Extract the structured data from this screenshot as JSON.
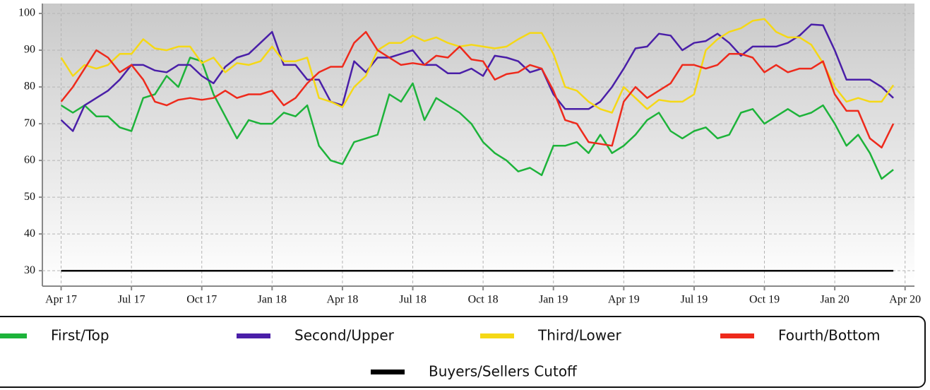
{
  "chart_data": {
    "type": "line",
    "x": [
      0,
      0.5,
      1,
      1.5,
      2,
      2.5,
      3,
      3.5,
      4,
      4.5,
      5,
      5.5,
      6,
      6.5,
      7,
      7.5,
      8,
      8.5,
      9,
      9.5,
      10,
      10.5,
      11,
      11.5,
      12,
      12.5,
      13,
      13.5,
      14,
      14.5,
      15,
      15.5,
      16,
      16.5,
      17,
      17.5,
      18,
      18.5,
      19,
      19.5,
      20,
      20.5,
      21,
      21.5,
      22,
      22.5,
      23,
      23.5,
      24,
      24.5,
      25,
      25.5,
      26,
      26.5,
      27,
      27.5,
      28,
      28.5,
      29,
      29.5,
      30,
      30.5,
      31,
      31.5,
      32,
      32.5,
      33,
      33.5,
      34,
      34.5,
      35,
      35.5
    ],
    "xlim": [
      -0.8,
      36.4
    ],
    "xticks": [
      {
        "value": 0,
        "label": "Apr 17"
      },
      {
        "value": 3,
        "label": "Jul 17"
      },
      {
        "value": 6,
        "label": "Oct 17"
      },
      {
        "value": 9,
        "label": "Jan 18"
      },
      {
        "value": 12,
        "label": "Apr 18"
      },
      {
        "value": 15,
        "label": "Jul 18"
      },
      {
        "value": 18,
        "label": "Oct 18"
      },
      {
        "value": 21,
        "label": "Jan 19"
      },
      {
        "value": 24,
        "label": "Apr 19"
      },
      {
        "value": 27,
        "label": "Jul 19"
      },
      {
        "value": 30,
        "label": "Oct 19"
      },
      {
        "value": 33,
        "label": "Jan 20"
      },
      {
        "value": 36,
        "label": "Apr 20"
      }
    ],
    "ylim": [
      25.8,
      102.7
    ],
    "yticks": [
      30,
      40,
      50,
      60,
      70,
      80,
      90,
      100
    ],
    "grid": true,
    "legend": "bottom",
    "series": [
      {
        "name": "First/Top",
        "color": "#1db33a",
        "values": [
          75,
          73,
          75,
          72,
          72,
          69,
          68,
          77,
          78,
          83,
          80,
          88,
          87,
          78,
          72,
          66,
          71,
          70,
          70,
          73,
          72,
          75,
          64,
          60,
          59,
          65,
          66,
          67,
          78,
          76,
          81,
          71,
          77,
          75,
          73,
          70,
          65,
          62,
          60,
          57,
          58,
          56,
          64,
          64,
          65,
          62,
          67,
          62,
          64,
          67,
          71,
          73,
          68,
          66,
          68,
          69,
          66,
          67,
          73,
          74,
          70,
          72,
          74,
          72,
          73,
          75,
          70,
          64,
          67,
          62,
          55,
          57.5
        ]
      },
      {
        "name": "Second/Upper",
        "color": "#4a1fa8",
        "values": [
          71,
          68,
          75,
          77,
          79,
          82,
          86,
          86,
          84.5,
          84,
          86,
          86,
          83,
          81,
          85.5,
          88,
          89,
          92,
          95,
          86,
          86,
          82,
          82,
          76,
          75,
          87,
          84,
          88,
          88,
          89,
          90,
          86,
          86,
          83.7,
          83.7,
          85,
          83,
          88.5,
          88,
          87,
          84,
          85,
          78,
          74,
          74,
          74,
          76,
          80,
          85,
          90.5,
          91,
          94.5,
          94,
          90,
          92,
          92.5,
          94.5,
          92,
          88.5,
          91,
          91,
          91,
          92,
          94,
          97,
          96.8,
          90,
          82,
          82,
          82,
          80,
          77
        ]
      },
      {
        "name": "Third/Lower",
        "color": "#f5d816",
        "values": [
          88,
          83,
          86,
          85,
          86,
          89,
          89,
          93,
          90.5,
          90,
          91,
          91,
          86.5,
          88,
          84,
          86.5,
          86,
          87,
          91,
          87,
          87,
          88,
          77,
          76,
          74.5,
          80,
          83,
          90,
          92,
          92,
          94,
          92.5,
          93.5,
          92,
          91,
          91.5,
          91,
          90.5,
          91,
          93,
          94.7,
          94.7,
          89,
          80,
          79,
          76,
          74,
          73,
          80,
          77,
          74,
          76.5,
          76,
          76,
          78,
          90,
          93,
          95,
          96,
          98,
          98.5,
          95,
          93.5,
          93.5,
          91.5,
          86.5,
          80,
          76,
          77,
          76,
          76,
          80.5
        ]
      },
      {
        "name": "Fourth/Bottom",
        "color": "#ee2a1c",
        "values": [
          76,
          80,
          85,
          90,
          88,
          84,
          86,
          82,
          76,
          75,
          76.5,
          77,
          76.5,
          77,
          79,
          77,
          78,
          78,
          79,
          75,
          77,
          81,
          84,
          85.5,
          85.5,
          92,
          95,
          90,
          88,
          86,
          86.5,
          86,
          88.5,
          88,
          91,
          87.5,
          87,
          82,
          83.5,
          84,
          86,
          85,
          79,
          71,
          70,
          65,
          64.5,
          64,
          76,
          80,
          77,
          79,
          81,
          86,
          86,
          85,
          86,
          89,
          89,
          88,
          84,
          86,
          84,
          85,
          85,
          87,
          78,
          73.5,
          73.5,
          66,
          63.5,
          70
        ]
      },
      {
        "name": "Buyers/Sellers Cutoff",
        "color": "#000000",
        "values": [
          30,
          30,
          30,
          30,
          30,
          30,
          30,
          30,
          30,
          30,
          30,
          30,
          30,
          30,
          30,
          30,
          30,
          30,
          30,
          30,
          30,
          30,
          30,
          30,
          30,
          30,
          30,
          30,
          30,
          30,
          30,
          30,
          30,
          30,
          30,
          30,
          30,
          30,
          30,
          30,
          30,
          30,
          30,
          30,
          30,
          30,
          30,
          30,
          30,
          30,
          30,
          30,
          30,
          30,
          30,
          30,
          30,
          30,
          30,
          30,
          30,
          30,
          30,
          30,
          30,
          30,
          30,
          30,
          30,
          30,
          30,
          30
        ]
      }
    ]
  }
}
